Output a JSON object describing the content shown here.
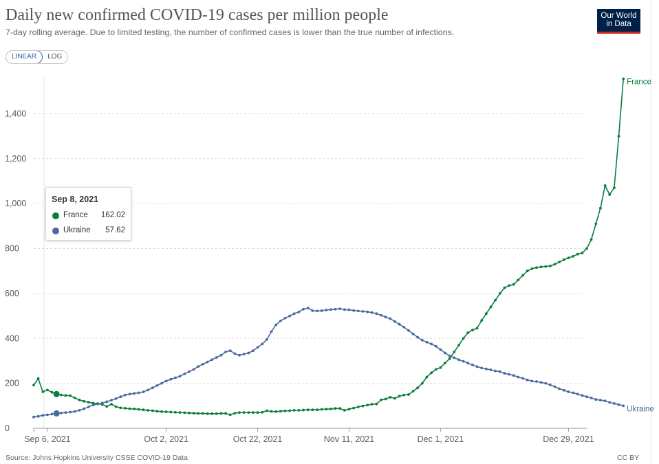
{
  "header": {
    "title": "Daily new confirmed COVID-19 cases per million people",
    "subtitle": "7-day rolling average. Due to limited testing, the number of confirmed cases is lower than the true number of infections.",
    "logo_line1": "Our World",
    "logo_line2": "in Data"
  },
  "controls": {
    "linear_label": "LINEAR",
    "log_label": "LOG",
    "active": "LINEAR"
  },
  "tooltip": {
    "date": "Sep 8, 2021",
    "rows": [
      {
        "name": "France",
        "value": "162.02"
      },
      {
        "name": "Ukraine",
        "value": "57.62"
      }
    ]
  },
  "footer": {
    "source": "Source: Johns Hopkins University CSSE COVID-19 Data",
    "license": "CC BY"
  },
  "colors": {
    "France": "#0a7e3f",
    "Ukraine": "#4b6a9c",
    "grid": "#dddddd",
    "axis_text": "#5b5b5b"
  },
  "chart_data": {
    "type": "line",
    "x_start_date": "2021-09-03",
    "x_end_date": "2022-01-02",
    "x_step_days": 1,
    "xlim": [
      "2021-09-03",
      "2022-01-02"
    ],
    "ylim": [
      0,
      1600
    ],
    "yticks": [
      0,
      200,
      400,
      600,
      800,
      1000,
      1200,
      1400
    ],
    "ytick_labels": [
      "0",
      "200",
      "400",
      "600",
      "800",
      "1,000",
      "1,200",
      "1,400"
    ],
    "xticks": [
      "2021-09-06",
      "2021-10-02",
      "2021-10-22",
      "2021-11-11",
      "2021-12-01",
      "2021-12-29"
    ],
    "xtick_labels": [
      "Sep 6, 2021",
      "Oct 2, 2021",
      "Oct 22, 2021",
      "Nov 11, 2021",
      "Dec 1, 2021",
      "Dec 29, 2021"
    ],
    "grid": true,
    "legend": "inline labels at line ends",
    "highlight_date": "2021-09-08",
    "series": [
      {
        "name": "France",
        "values": [
          192,
          221,
          162,
          170,
          160,
          152,
          148,
          146,
          145,
          135,
          126,
          120,
          116,
          112,
          110,
          106,
          97,
          107,
          96,
          91,
          89,
          87,
          86,
          84,
          82,
          80,
          78,
          76,
          74,
          73,
          72,
          71,
          70,
          69,
          68,
          67,
          66,
          66,
          65,
          65,
          65,
          66,
          66,
          60,
          67,
          70,
          70,
          70,
          70,
          70,
          71,
          78,
          75,
          74,
          76,
          77,
          78,
          80,
          80,
          81,
          82,
          82,
          82,
          84,
          85,
          86,
          88,
          88,
          80,
          85,
          90,
          95,
          99,
          103,
          107,
          108,
          126,
          130,
          138,
          133,
          143,
          148,
          150,
          165,
          180,
          200,
          228,
          247,
          262,
          270,
          290,
          310,
          340,
          370,
          400,
          425,
          437,
          445,
          480,
          510,
          540,
          570,
          600,
          625,
          635,
          640,
          660,
          680,
          700,
          710,
          715,
          718,
          720,
          722,
          730,
          740,
          750,
          758,
          765,
          775,
          780,
          800,
          840,
          910,
          980,
          1080,
          1040,
          1070,
          1300,
          1555
        ],
        "end_label": "France"
      },
      {
        "name": "Ukraine",
        "values": [
          50,
          53,
          57.62,
          60,
          63,
          66,
          68,
          70,
          72,
          75,
          80,
          87,
          95,
          103,
          108,
          112,
          118,
          125,
          132,
          140,
          148,
          152,
          155,
          158,
          162,
          170,
          180,
          190,
          200,
          210,
          218,
          225,
          232,
          242,
          252,
          262,
          275,
          285,
          295,
          305,
          315,
          325,
          340,
          345,
          332,
          325,
          330,
          335,
          345,
          360,
          375,
          395,
          430,
          460,
          478,
          490,
          500,
          510,
          518,
          530,
          535,
          523,
          522,
          523,
          526,
          528,
          530,
          532,
          528,
          527,
          524,
          522,
          520,
          518,
          515,
          510,
          503,
          495,
          488,
          475,
          463,
          450,
          435,
          420,
          405,
          392,
          383,
          375,
          365,
          350,
          335,
          322,
          314,
          305,
          298,
          290,
          282,
          274,
          268,
          264,
          260,
          255,
          252,
          244,
          240,
          235,
          228,
          222,
          215,
          210,
          208,
          204,
          200,
          193,
          185,
          176,
          169,
          162,
          158,
          152,
          146,
          140,
          135,
          128,
          125,
          122,
          115,
          110,
          105,
          100
        ],
        "end_label": "Ukraine"
      }
    ]
  }
}
